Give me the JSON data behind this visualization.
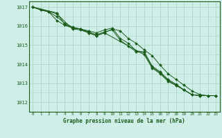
{
  "background_color": "#d0eee8",
  "plot_background": "#d0eee8",
  "grid_color": "#b0d8cc",
  "line_color": "#1a5c1a",
  "title": "Graphe pression niveau de la mer (hPa)",
  "xlim": [
    -0.5,
    23.5
  ],
  "ylim": [
    1011.5,
    1017.3
  ],
  "yticks": [
    1012,
    1013,
    1014,
    1015,
    1016,
    1017
  ],
  "xticks": [
    0,
    1,
    2,
    3,
    4,
    5,
    6,
    7,
    8,
    9,
    10,
    11,
    12,
    13,
    14,
    15,
    16,
    17,
    18,
    19,
    20,
    21,
    22,
    23
  ],
  "series": [
    {
      "x": [
        0,
        1,
        2,
        3,
        4,
        5,
        6,
        7,
        8,
        9,
        10,
        11,
        12,
        13,
        14,
        15,
        16,
        17,
        18,
        19,
        20,
        21,
        22,
        23
      ],
      "y": [
        1017.0,
        1016.85,
        1016.75,
        1016.5,
        1016.15,
        1015.95,
        1015.85,
        1015.65,
        1015.5,
        1015.65,
        1015.85,
        1015.75,
        1015.35,
        1015.1,
        1014.75,
        1014.45,
        1013.95,
        1013.5,
        1013.2,
        1012.9,
        1012.6,
        1012.4,
        1012.35,
        1012.35
      ]
    },
    {
      "x": [
        0,
        1,
        2,
        3,
        4,
        5,
        6,
        7,
        8,
        9,
        10,
        11,
        12,
        13,
        14,
        15,
        16,
        17,
        18,
        19,
        20,
        21,
        22,
        23
      ],
      "y": [
        1017.0,
        1016.85,
        1016.75,
        1016.3,
        1016.05,
        1015.9,
        1015.85,
        1015.75,
        1015.65,
        1015.8,
        1015.9,
        1015.35,
        1015.1,
        1014.7,
        1014.65,
        1013.9,
        1013.6,
        1013.2,
        1012.95,
        1012.65,
        1012.4,
        1012.35,
        1012.35,
        1012.35
      ]
    },
    {
      "x": [
        0,
        3,
        4,
        5,
        6,
        7,
        8,
        9,
        10,
        11,
        12,
        13,
        14,
        15,
        16,
        17,
        18,
        19,
        20,
        21,
        22,
        23
      ],
      "y": [
        1017.0,
        1016.7,
        1016.1,
        1015.9,
        1015.85,
        1015.7,
        1015.55,
        1015.7,
        1015.8,
        1015.25,
        1014.95,
        1014.65,
        1014.6,
        1013.85,
        1013.55,
        1013.15,
        1012.9,
        1012.65,
        1012.4,
        1012.35,
        1012.35,
        1012.35
      ]
    },
    {
      "x": [
        0,
        3,
        5,
        6,
        7,
        8,
        9,
        14,
        15,
        16,
        17,
        18,
        19,
        20,
        21,
        22,
        23
      ],
      "y": [
        1017.0,
        1016.65,
        1015.85,
        1015.8,
        1015.65,
        1015.5,
        1015.65,
        1014.5,
        1013.8,
        1013.5,
        1013.1,
        1012.88,
        1012.65,
        1012.4,
        1012.35,
        1012.35,
        1012.35
      ]
    }
  ]
}
